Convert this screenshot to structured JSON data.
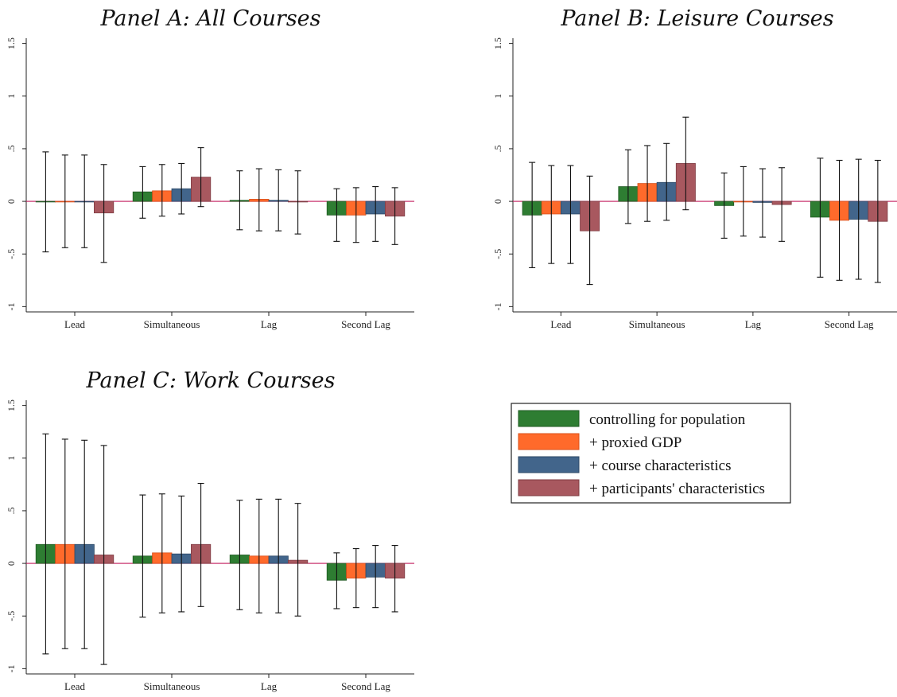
{
  "chart_data": [
    {
      "type": "bar",
      "title": "Panel A: All Courses",
      "categories": [
        "Lead",
        "Simultaneous",
        "Lag",
        "Second Lag"
      ],
      "ylim": [
        -1.05,
        1.55
      ],
      "yticks": [
        "-1",
        "-.5",
        "0",
        ".5",
        "1",
        "1.5"
      ],
      "ytick_values": [
        -1,
        -0.5,
        0,
        0.5,
        1,
        1.5
      ],
      "series": [
        {
          "name": "controlling for population",
          "values": [
            -0.005,
            0.09,
            0.01,
            -0.13
          ],
          "ci_low": [
            -0.48,
            -0.16,
            -0.27,
            -0.38
          ],
          "ci_high": [
            0.47,
            0.33,
            0.29,
            0.12
          ]
        },
        {
          "name": "+ proxied GDP",
          "values": [
            -0.005,
            0.1,
            0.02,
            -0.13
          ],
          "ci_low": [
            -0.44,
            -0.14,
            -0.28,
            -0.39
          ],
          "ci_high": [
            0.44,
            0.35,
            0.31,
            0.13
          ]
        },
        {
          "name": "+ course characteristics",
          "values": [
            -0.005,
            0.12,
            0.01,
            -0.12
          ],
          "ci_low": [
            -0.44,
            -0.12,
            -0.28,
            -0.38
          ],
          "ci_high": [
            0.44,
            0.36,
            0.3,
            0.14
          ]
        },
        {
          "name": "+ participants' characteristics",
          "values": [
            -0.11,
            0.23,
            -0.005,
            -0.14
          ],
          "ci_low": [
            -0.58,
            -0.05,
            -0.31,
            -0.41
          ],
          "ci_high": [
            0.35,
            0.51,
            0.29,
            0.13
          ]
        }
      ]
    },
    {
      "type": "bar",
      "title": "Panel B: Leisure Courses",
      "categories": [
        "Lead",
        "Simultaneous",
        "Lag",
        "Second Lag"
      ],
      "ylim": [
        -1.05,
        1.55
      ],
      "yticks": [
        "-1",
        "-.5",
        "0",
        ".5",
        "1",
        "1.5"
      ],
      "ytick_values": [
        -1,
        -0.5,
        0,
        0.5,
        1,
        1.5
      ],
      "series": [
        {
          "name": "controlling for population",
          "values": [
            -0.13,
            0.14,
            -0.04,
            -0.15
          ],
          "ci_low": [
            -0.63,
            -0.21,
            -0.35,
            -0.72
          ],
          "ci_high": [
            0.37,
            0.49,
            0.27,
            0.41
          ]
        },
        {
          "name": "+ proxied GDP",
          "values": [
            -0.12,
            0.17,
            -0.005,
            -0.18
          ],
          "ci_low": [
            -0.59,
            -0.19,
            -0.33,
            -0.75
          ],
          "ci_high": [
            0.34,
            0.53,
            0.33,
            0.39
          ]
        },
        {
          "name": "+ course characteristics",
          "values": [
            -0.12,
            0.18,
            -0.01,
            -0.17
          ],
          "ci_low": [
            -0.59,
            -0.18,
            -0.34,
            -0.74
          ],
          "ci_high": [
            0.34,
            0.55,
            0.31,
            0.4
          ]
        },
        {
          "name": "+ participants' characteristics",
          "values": [
            -0.28,
            0.36,
            -0.03,
            -0.19
          ],
          "ci_low": [
            -0.79,
            -0.08,
            -0.38,
            -0.77
          ],
          "ci_high": [
            0.24,
            0.8,
            0.32,
            0.39
          ]
        }
      ]
    },
    {
      "type": "bar",
      "title": "Panel C: Work Courses",
      "categories": [
        "Lead",
        "Simultaneous",
        "Lag",
        "Second Lag"
      ],
      "ylim": [
        -1.05,
        1.55
      ],
      "yticks": [
        "-1",
        "-.5",
        "0",
        ".5",
        "1",
        "1.5"
      ],
      "ytick_values": [
        -1,
        -0.5,
        0,
        0.5,
        1,
        1.5
      ],
      "series": [
        {
          "name": "controlling for population",
          "values": [
            0.18,
            0.07,
            0.08,
            -0.16
          ],
          "ci_low": [
            -0.86,
            -0.51,
            -0.44,
            -0.43
          ],
          "ci_high": [
            1.23,
            0.65,
            0.6,
            0.1
          ]
        },
        {
          "name": "+ proxied GDP",
          "values": [
            0.18,
            0.1,
            0.07,
            -0.14
          ],
          "ci_low": [
            -0.81,
            -0.47,
            -0.47,
            -0.42
          ],
          "ci_high": [
            1.18,
            0.66,
            0.61,
            0.14
          ]
        },
        {
          "name": "+ course characteristics",
          "values": [
            0.18,
            0.09,
            0.07,
            -0.13
          ],
          "ci_low": [
            -0.81,
            -0.46,
            -0.47,
            -0.42
          ],
          "ci_high": [
            1.17,
            0.64,
            0.61,
            0.17
          ]
        },
        {
          "name": "+ participants' characteristics",
          "values": [
            0.08,
            0.18,
            0.03,
            -0.14
          ],
          "ci_low": [
            -0.96,
            -0.41,
            -0.5,
            -0.46
          ],
          "ci_high": [
            1.12,
            0.76,
            0.57,
            0.17
          ]
        }
      ]
    }
  ],
  "legend": {
    "items": [
      {
        "label": "controlling for population",
        "color": "#2e7d32"
      },
      {
        "label": "+ proxied GDP",
        "color": "#ff6a2b"
      },
      {
        "label": "+ course characteristics",
        "color": "#42658b"
      },
      {
        "label": "+ participants' characteristics",
        "color": "#a8585f"
      }
    ]
  },
  "colors": {
    "series": [
      "#2e7d32",
      "#ff6a2b",
      "#42658b",
      "#a8585f"
    ],
    "series_stroke": [
      "#1f5a22",
      "#d9501a",
      "#2c4866",
      "#7e3b42"
    ],
    "zero_line": "#c2185b",
    "axis": "#222222"
  }
}
